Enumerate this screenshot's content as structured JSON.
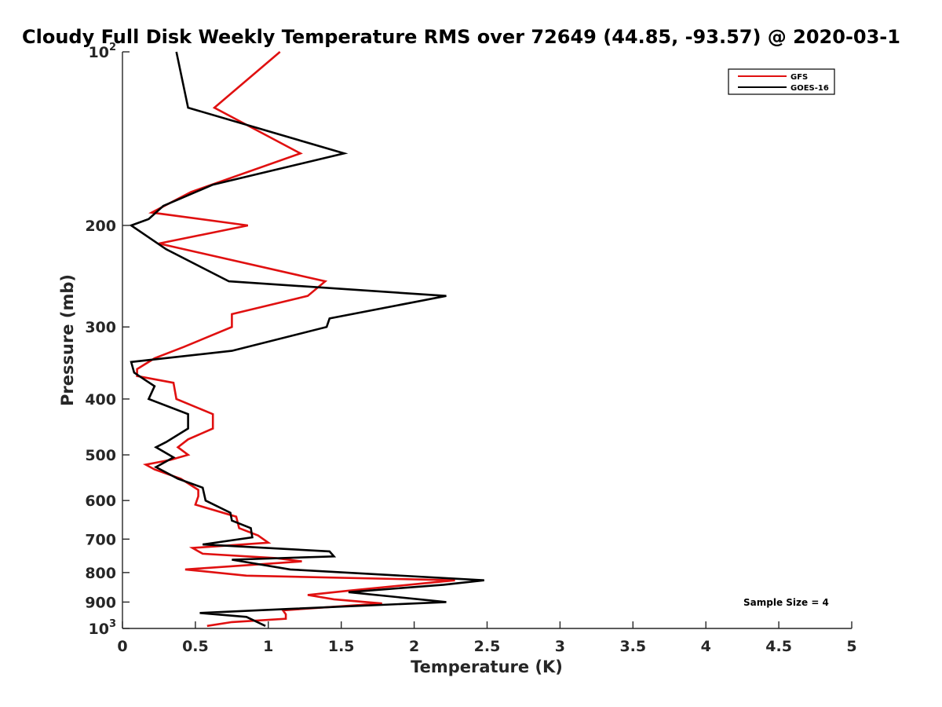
{
  "chart_data": {
    "type": "line",
    "title": "Cloudy Full Disk Weekly Temperature RMS over 72649 (44.85, -93.57) @ 2020-03-1",
    "xlabel": "Temperature (K)",
    "ylabel": "Pressure (mb)",
    "xlim": [
      0,
      5
    ],
    "ylim": [
      100,
      1000
    ],
    "yscale": "log",
    "y_reversed": true,
    "grid": false,
    "legend_position": "top-right",
    "x_ticks": [
      "0",
      "0.5",
      "1",
      "1.5",
      "2",
      "2.5",
      "3",
      "3.5",
      "4",
      "4.5",
      "5"
    ],
    "y_ticks": [
      {
        "value": 100,
        "base": "10",
        "exp": "2",
        "label": ""
      },
      {
        "value": 200,
        "base": "",
        "exp": "",
        "label": "200"
      },
      {
        "value": 300,
        "base": "",
        "exp": "",
        "label": "300"
      },
      {
        "value": 400,
        "base": "",
        "exp": "",
        "label": "400"
      },
      {
        "value": 500,
        "base": "",
        "exp": "",
        "label": "500"
      },
      {
        "value": 600,
        "base": "",
        "exp": "",
        "label": "600"
      },
      {
        "value": 700,
        "base": "",
        "exp": "",
        "label": "700"
      },
      {
        "value": 800,
        "base": "",
        "exp": "",
        "label": "800"
      },
      {
        "value": 900,
        "base": "",
        "exp": "",
        "label": "900"
      },
      {
        "value": 1000,
        "base": "10",
        "exp": "3",
        "label": ""
      }
    ],
    "series": [
      {
        "name": "GFS",
        "color": "#e01010",
        "points": [
          [
            1.08,
            100
          ],
          [
            0.63,
            125
          ],
          [
            1.22,
            150
          ],
          [
            0.47,
            175
          ],
          [
            0.2,
            190
          ],
          [
            0.86,
            200
          ],
          [
            0.25,
            215
          ],
          [
            1.39,
            250
          ],
          [
            1.27,
            265
          ],
          [
            0.75,
            285
          ],
          [
            0.75,
            300
          ],
          [
            0.42,
            325
          ],
          [
            0.22,
            340
          ],
          [
            0.1,
            355
          ],
          [
            0.1,
            365
          ],
          [
            0.35,
            375
          ],
          [
            0.37,
            400
          ],
          [
            0.62,
            425
          ],
          [
            0.62,
            450
          ],
          [
            0.45,
            470
          ],
          [
            0.38,
            485
          ],
          [
            0.45,
            500
          ],
          [
            0.33,
            510
          ],
          [
            0.16,
            520
          ],
          [
            0.22,
            530
          ],
          [
            0.4,
            550
          ],
          [
            0.52,
            575
          ],
          [
            0.52,
            590
          ],
          [
            0.5,
            610
          ],
          [
            0.78,
            640
          ],
          [
            0.8,
            670
          ],
          [
            0.93,
            690
          ],
          [
            1.0,
            710
          ],
          [
            0.48,
            725
          ],
          [
            0.55,
            742
          ],
          [
            1.05,
            755
          ],
          [
            1.23,
            765
          ],
          [
            0.43,
            790
          ],
          [
            0.85,
            810
          ],
          [
            2.28,
            825
          ],
          [
            1.55,
            860
          ],
          [
            1.27,
            875
          ],
          [
            1.45,
            890
          ],
          [
            1.78,
            905
          ],
          [
            1.1,
            930
          ],
          [
            1.12,
            945
          ],
          [
            1.12,
            962
          ],
          [
            0.75,
            975
          ],
          [
            0.58,
            990
          ]
        ]
      },
      {
        "name": "GOES-16",
        "color": "#000000",
        "points": [
          [
            0.37,
            100
          ],
          [
            0.45,
            125
          ],
          [
            1.52,
            150
          ],
          [
            0.62,
            170
          ],
          [
            0.28,
            185
          ],
          [
            0.18,
            195
          ],
          [
            0.06,
            200
          ],
          [
            0.3,
            220
          ],
          [
            0.73,
            250
          ],
          [
            2.22,
            265
          ],
          [
            1.42,
            290
          ],
          [
            1.4,
            300
          ],
          [
            0.75,
            330
          ],
          [
            0.06,
            345
          ],
          [
            0.08,
            360
          ],
          [
            0.15,
            370
          ],
          [
            0.22,
            380
          ],
          [
            0.18,
            400
          ],
          [
            0.45,
            425
          ],
          [
            0.45,
            450
          ],
          [
            0.3,
            475
          ],
          [
            0.23,
            485
          ],
          [
            0.35,
            505
          ],
          [
            0.23,
            525
          ],
          [
            0.38,
            550
          ],
          [
            0.55,
            570
          ],
          [
            0.57,
            600
          ],
          [
            0.74,
            630
          ],
          [
            0.75,
            650
          ],
          [
            0.88,
            670
          ],
          [
            0.89,
            695
          ],
          [
            0.55,
            715
          ],
          [
            1.42,
            735
          ],
          [
            1.45,
            750
          ],
          [
            0.75,
            760
          ],
          [
            1.15,
            790
          ],
          [
            2.48,
            825
          ],
          [
            2.2,
            840
          ],
          [
            1.55,
            865
          ],
          [
            2.22,
            900
          ],
          [
            1.15,
            925
          ],
          [
            0.53,
            940
          ],
          [
            0.85,
            955
          ],
          [
            0.98,
            990
          ]
        ]
      }
    ],
    "annotations": [
      "Sample Size = 4"
    ]
  }
}
